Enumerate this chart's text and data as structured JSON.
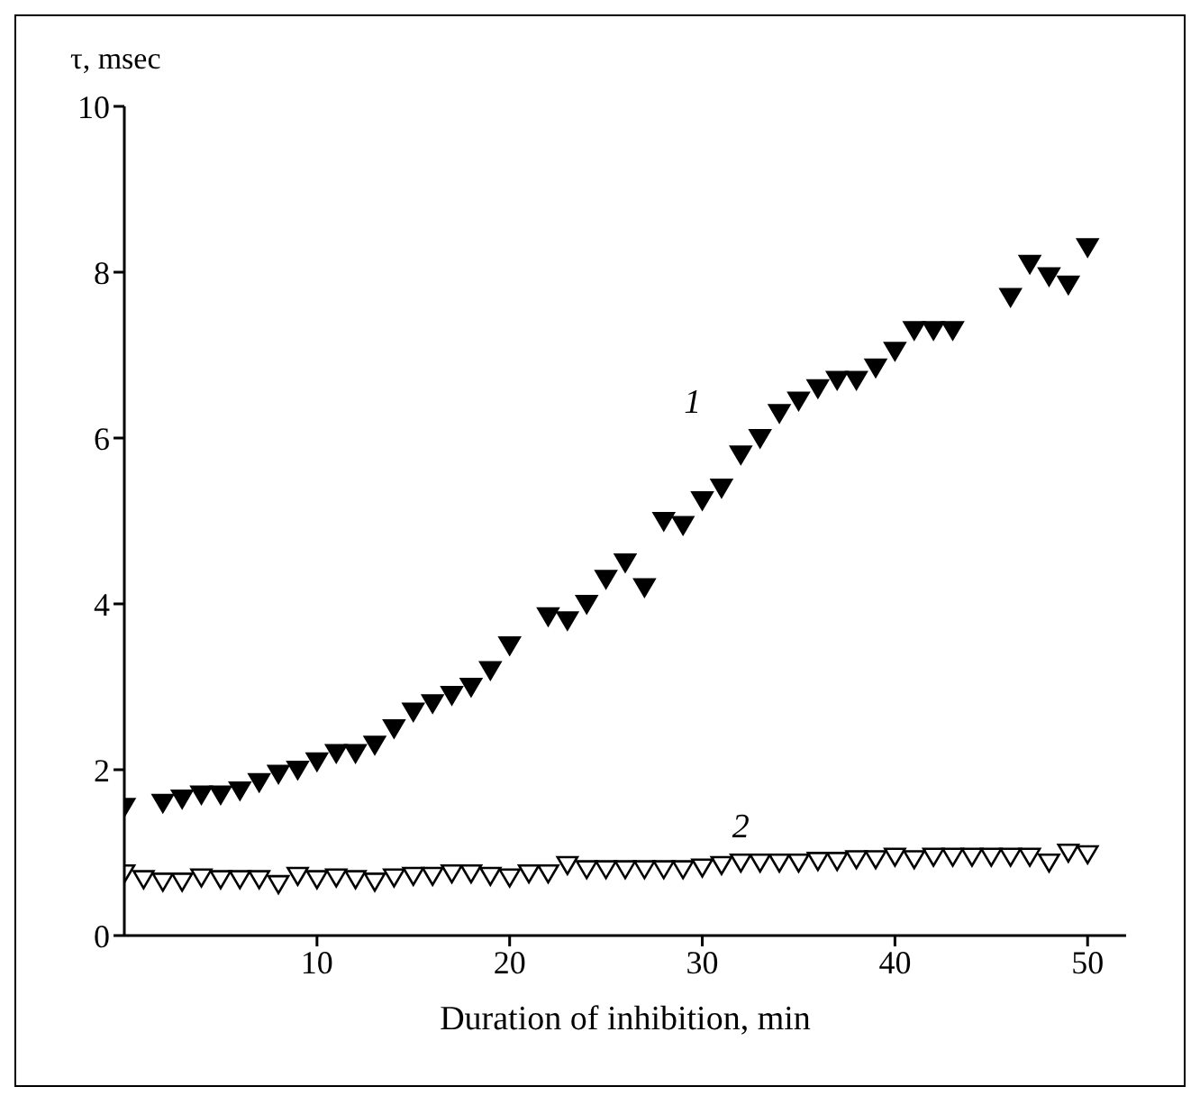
{
  "chart_data": {
    "type": "scatter",
    "xlabel": "Duration of inhibition, min",
    "ylabel": "τ, msec",
    "xlim": [
      0,
      52
    ],
    "xticks": [
      10,
      20,
      30,
      40,
      50
    ],
    "ylim": [
      0,
      10
    ],
    "yticks": [
      0,
      2,
      4,
      6,
      8,
      10
    ],
    "grid": false,
    "legend": false,
    "marker": "triangle",
    "series": [
      {
        "color": "#000000",
        "x": [
          0,
          2,
          3,
          4,
          5,
          6,
          7,
          8,
          9,
          10,
          11,
          12,
          13,
          14,
          15,
          16,
          17,
          18,
          19,
          20,
          22,
          23,
          24,
          25,
          26,
          27,
          28,
          29,
          30,
          31,
          32,
          33,
          34,
          35,
          36,
          37,
          38,
          39,
          40,
          41,
          42,
          43,
          46,
          47,
          48,
          49,
          50
        ],
        "values": [
          1.55,
          1.6,
          1.65,
          1.7,
          1.7,
          1.75,
          1.85,
          1.95,
          2.0,
          2.1,
          2.2,
          2.2,
          2.3,
          2.5,
          2.7,
          2.8,
          2.9,
          3.0,
          3.2,
          3.5,
          3.85,
          3.8,
          4.0,
          4.3,
          4.5,
          4.2,
          5.0,
          4.95,
          5.25,
          5.4,
          5.8,
          6.0,
          6.3,
          6.45,
          6.6,
          6.7,
          6.7,
          6.85,
          7.05,
          7.3,
          7.3,
          7.3,
          7.7,
          8.1,
          7.95,
          7.85,
          8.3
        ]
      },
      {
        "color": "#000000",
        "x": [
          0,
          1,
          2,
          3,
          4,
          5,
          6,
          7,
          8,
          9,
          10,
          11,
          12,
          13,
          14,
          15,
          16,
          17,
          18,
          19,
          20,
          21,
          22,
          23,
          24,
          25,
          26,
          27,
          28,
          29,
          30,
          31,
          32,
          33,
          34,
          35,
          36,
          37,
          38,
          39,
          40,
          41,
          42,
          43,
          44,
          45,
          46,
          47,
          48,
          49,
          50
        ],
        "values": [
          0.75,
          0.68,
          0.65,
          0.65,
          0.7,
          0.68,
          0.68,
          0.68,
          0.62,
          0.72,
          0.68,
          0.7,
          0.68,
          0.65,
          0.7,
          0.72,
          0.72,
          0.75,
          0.75,
          0.72,
          0.7,
          0.75,
          0.75,
          0.85,
          0.8,
          0.8,
          0.8,
          0.8,
          0.8,
          0.8,
          0.82,
          0.85,
          0.88,
          0.88,
          0.88,
          0.88,
          0.9,
          0.9,
          0.92,
          0.92,
          0.95,
          0.92,
          0.95,
          0.95,
          0.95,
          0.95,
          0.95,
          0.95,
          0.88,
          1.0,
          0.98
        ]
      }
    ],
    "annotations": [
      "1",
      "2"
    ]
  }
}
